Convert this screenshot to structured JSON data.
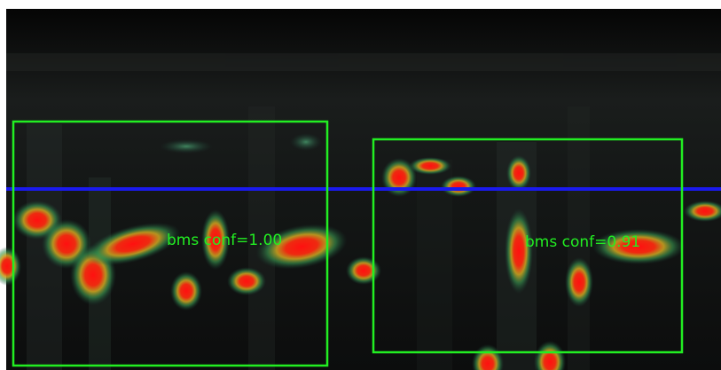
{
  "detections": [
    {
      "label": "bms conf=1.00"
    },
    {
      "label": "bms conf=0.91"
    }
  ]
}
